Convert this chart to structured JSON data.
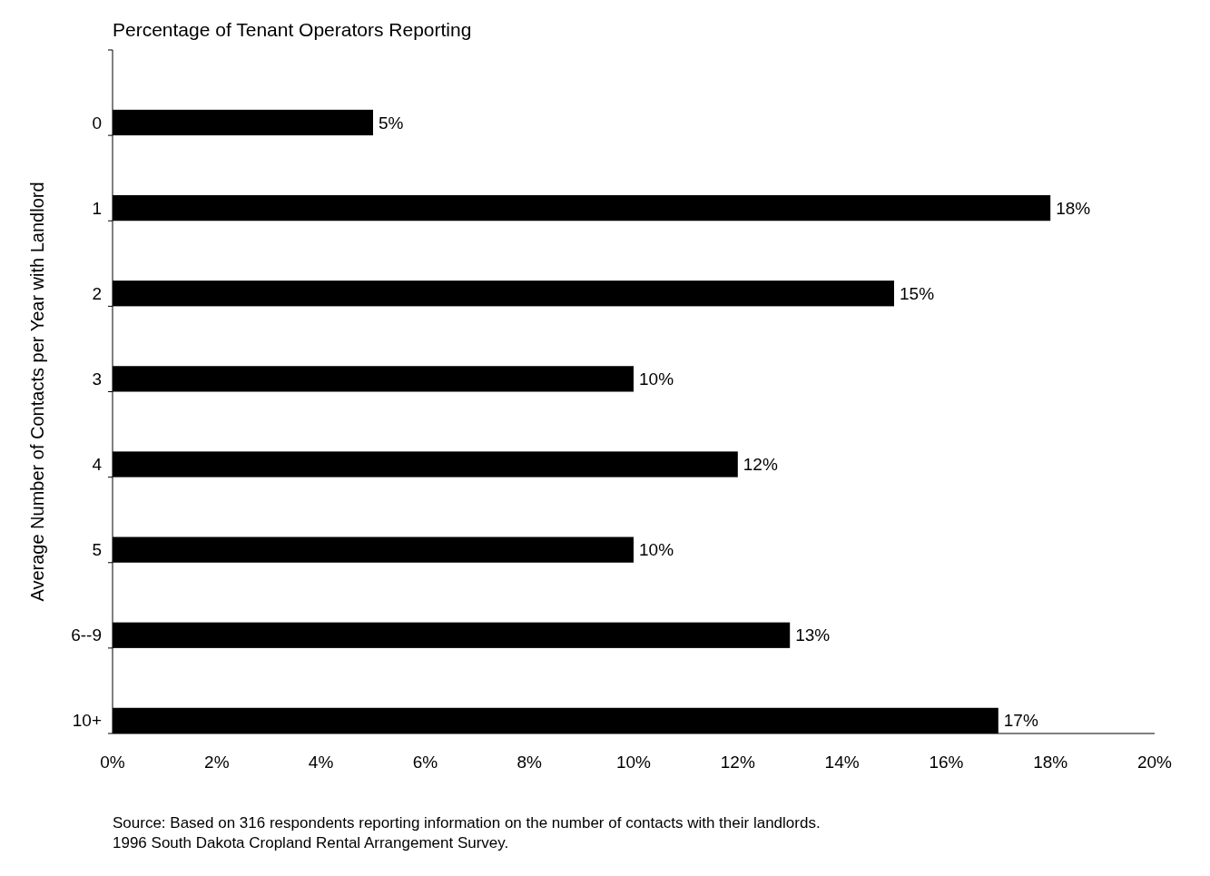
{
  "chart_data": {
    "type": "bar",
    "orientation": "horizontal",
    "title": "Percentage of Tenant Operators Reporting",
    "ylabel": "Average Number of Contacts per Year with Landlord",
    "categories": [
      "0",
      "1",
      "2",
      "3",
      "4",
      "5",
      "6--9",
      "10+"
    ],
    "values": [
      5,
      18,
      15,
      10,
      12,
      10,
      13,
      17
    ],
    "value_labels": [
      "5%",
      "18%",
      "15%",
      "10%",
      "12%",
      "10%",
      "13%",
      "17%"
    ],
    "color": "#000000",
    "xlim": [
      0,
      20
    ],
    "xticks": [
      {
        "value": 0,
        "label": "0%"
      },
      {
        "value": 2,
        "label": "2%"
      },
      {
        "value": 4,
        "label": "4%"
      },
      {
        "value": 6,
        "label": "6%"
      },
      {
        "value": 8,
        "label": "8%"
      },
      {
        "value": 10,
        "label": "10%"
      },
      {
        "value": 12,
        "label": "12%"
      },
      {
        "value": 14,
        "label": "14%"
      },
      {
        "value": 16,
        "label": "16%"
      },
      {
        "value": 18,
        "label": "18%"
      },
      {
        "value": 20,
        "label": "20%"
      }
    ],
    "grid": false,
    "annotations": [
      "Source: Based on 316 respondents reporting information on the number of contacts with their landlords.",
      "1996 South Dakota Cropland Rental Arrangement Survey."
    ]
  }
}
